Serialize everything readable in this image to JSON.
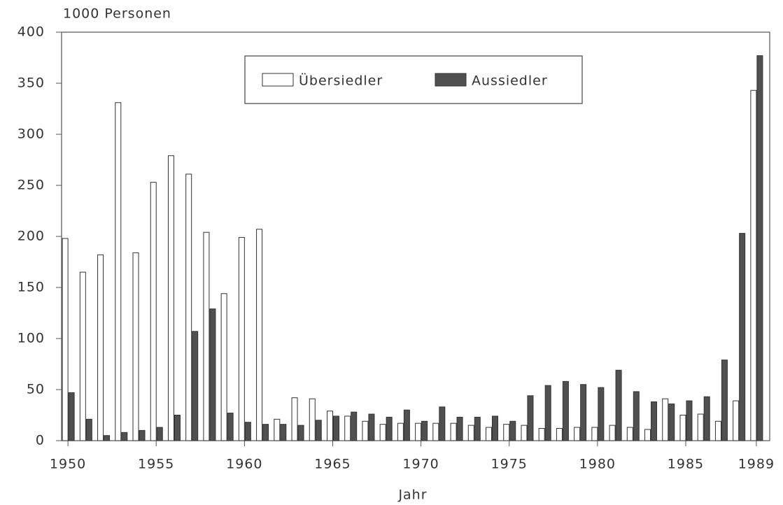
{
  "chart_data": {
    "type": "bar",
    "title": "1000 Personen",
    "x_label": "Jahr",
    "categories": [
      "1950",
      null,
      null,
      null,
      null,
      "1955",
      null,
      null,
      null,
      null,
      "1960",
      null,
      null,
      null,
      null,
      "1965",
      null,
      null,
      null,
      null,
      "1970",
      null,
      null,
      null,
      null,
      "1975",
      null,
      null,
      null,
      null,
      "1980",
      null,
      null,
      null,
      null,
      "1985",
      null,
      null,
      null,
      "1989"
    ],
    "series": [
      {
        "name": "Übersiedler",
        "color": "#ffffff",
        "values": [
          198,
          165,
          182,
          331,
          184,
          253,
          279,
          261,
          204,
          144,
          199,
          207,
          21,
          42,
          41,
          29,
          24,
          19,
          16,
          17,
          17,
          17,
          17,
          15,
          13,
          16,
          15,
          12,
          12,
          13,
          13,
          15,
          13,
          11,
          41,
          25,
          26,
          19,
          39,
          343
        ]
      },
      {
        "name": "Aussiedler",
        "color": "#505050",
        "values": [
          47,
          21,
          5,
          8,
          10,
          13,
          25,
          107,
          129,
          27,
          18,
          16,
          16,
          15,
          20,
          24,
          28,
          26,
          23,
          30,
          19,
          33,
          23,
          23,
          24,
          19,
          44,
          54,
          58,
          55,
          52,
          69,
          48,
          38,
          36,
          39,
          43,
          79,
          203,
          377
        ]
      }
    ],
    "ylim": [
      0,
      400
    ],
    "yticks": [
      0,
      50,
      100,
      150,
      200,
      250,
      300,
      350,
      400
    ],
    "legend": "top"
  }
}
